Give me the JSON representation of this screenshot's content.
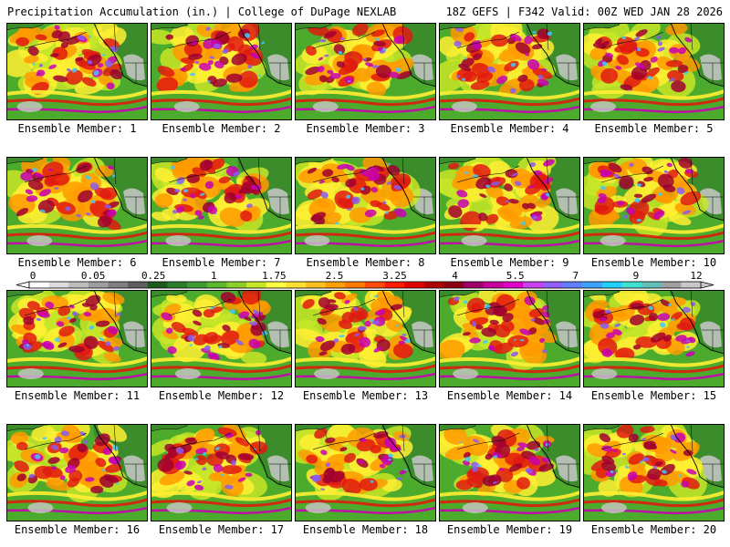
{
  "header": {
    "left": "Precipitation Accumulation (in.) | College of DuPage NEXLAB",
    "right": "18Z GEFS | F342 Valid: 00Z WED JAN 28 2026"
  },
  "panels": [
    {
      "label": "Ensemble Member: 1"
    },
    {
      "label": "Ensemble Member: 2"
    },
    {
      "label": "Ensemble Member: 3"
    },
    {
      "label": "Ensemble Member: 4"
    },
    {
      "label": "Ensemble Member: 5"
    },
    {
      "label": "Ensemble Member: 6"
    },
    {
      "label": "Ensemble Member: 7"
    },
    {
      "label": "Ensemble Member: 8"
    },
    {
      "label": "Ensemble Member: 9"
    },
    {
      "label": "Ensemble Member: 10"
    },
    {
      "label": "Ensemble Member: 11"
    },
    {
      "label": "Ensemble Member: 12"
    },
    {
      "label": "Ensemble Member: 13"
    },
    {
      "label": "Ensemble Member: 14"
    },
    {
      "label": "Ensemble Member: 15"
    },
    {
      "label": "Ensemble Member: 16"
    },
    {
      "label": "Ensemble Member: 17"
    },
    {
      "label": "Ensemble Member: 18"
    },
    {
      "label": "Ensemble Member: 19"
    },
    {
      "label": "Ensemble Member: 20"
    }
  ],
  "colorbar": {
    "tick_labels": [
      "0",
      "0.05",
      "0.25",
      "1",
      "1.75",
      "2.5",
      "3.25",
      "4",
      "5.5",
      "7",
      "9",
      "12"
    ],
    "colors": [
      "#ffffff",
      "#dcdcdc",
      "#bdbdbd",
      "#9e9e9e",
      "#7f7f7f",
      "#5e5e5e",
      "#1e5a1e",
      "#2e7d2e",
      "#3e9d32",
      "#5cb82e",
      "#8ccf2a",
      "#c8e628",
      "#ffff40",
      "#ffe030",
      "#ffc020",
      "#ffa000",
      "#ff7a00",
      "#ff4a00",
      "#ff1a00",
      "#e00000",
      "#b00000",
      "#8a0010",
      "#a0006a",
      "#c8009c",
      "#e000c8",
      "#c840f0",
      "#9060ff",
      "#6080ff",
      "#40a0ff",
      "#20d0ff",
      "#40e0d0",
      "#60c0b8",
      "#a0a0a0",
      "#c8c8c8"
    ]
  },
  "map_palette": {
    "land": "#3c8c2c",
    "ocean": "#4caa2c",
    "light": "#c8e628",
    "yellow": "#ffee33",
    "orange": "#ff9a00",
    "red": "#e01a10",
    "darkred": "#a00030",
    "magenta": "#c800b4",
    "purple": "#8a5cf0",
    "cyan": "#40c8ff",
    "gray": "#c8c8c8",
    "white": "#f4f4f4"
  }
}
